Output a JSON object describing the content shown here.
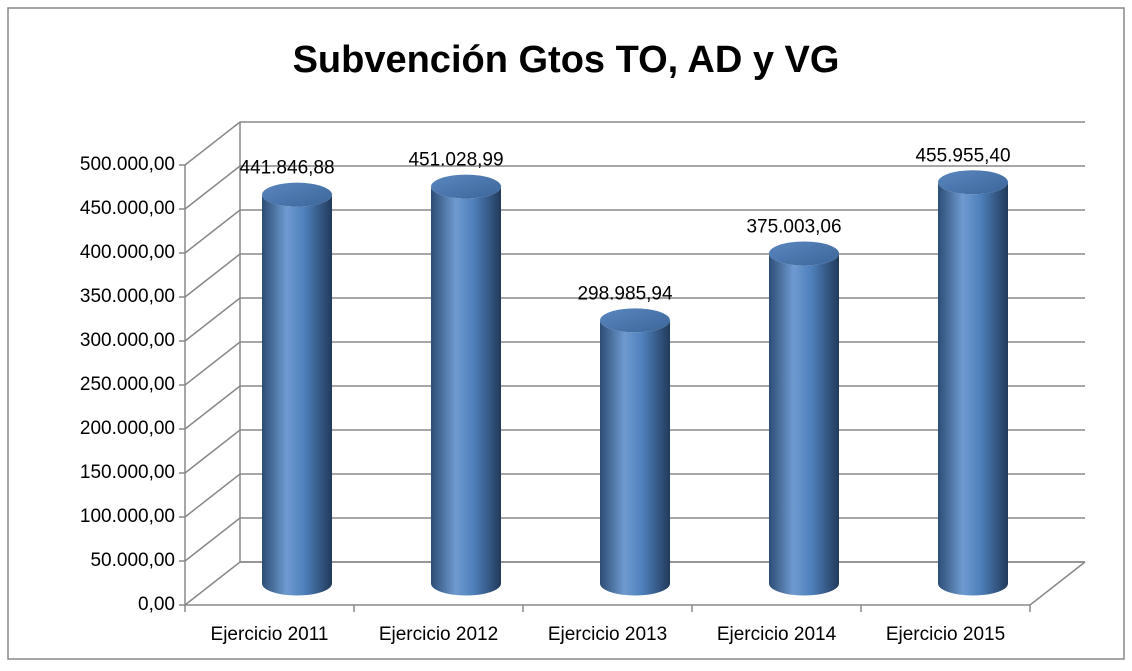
{
  "chart_data": {
    "type": "bar",
    "title": "Subvención Gtos TO, AD y VG",
    "categories": [
      "Ejercicio 2011",
      "Ejercicio 2012",
      "Ejercicio 2013",
      "Ejercicio 2014",
      "Ejercicio 2015"
    ],
    "values": [
      441846.88,
      451028.99,
      298985.94,
      375003.06,
      455955.4
    ],
    "value_labels": [
      "441.846,88",
      "451.028,99",
      "298.985,94",
      "375.003,06",
      "455.955,40"
    ],
    "color": "#4f81bd",
    "ylim": [
      0,
      500000
    ],
    "yticks": [
      {
        "value": 0,
        "label": "0,00"
      },
      {
        "value": 50000,
        "label": "50.000,00"
      },
      {
        "value": 100000,
        "label": "100.000,00"
      },
      {
        "value": 150000,
        "label": "150.000,00"
      },
      {
        "value": 200000,
        "label": "200.000,00"
      },
      {
        "value": 250000,
        "label": "250.000,00"
      },
      {
        "value": 300000,
        "label": "300.000,00"
      },
      {
        "value": 350000,
        "label": "350.000,00"
      },
      {
        "value": 400000,
        "label": "400.000,00"
      },
      {
        "value": 450000,
        "label": "450.000,00"
      },
      {
        "value": 500000,
        "label": "500.000,00"
      }
    ],
    "grid": true
  }
}
